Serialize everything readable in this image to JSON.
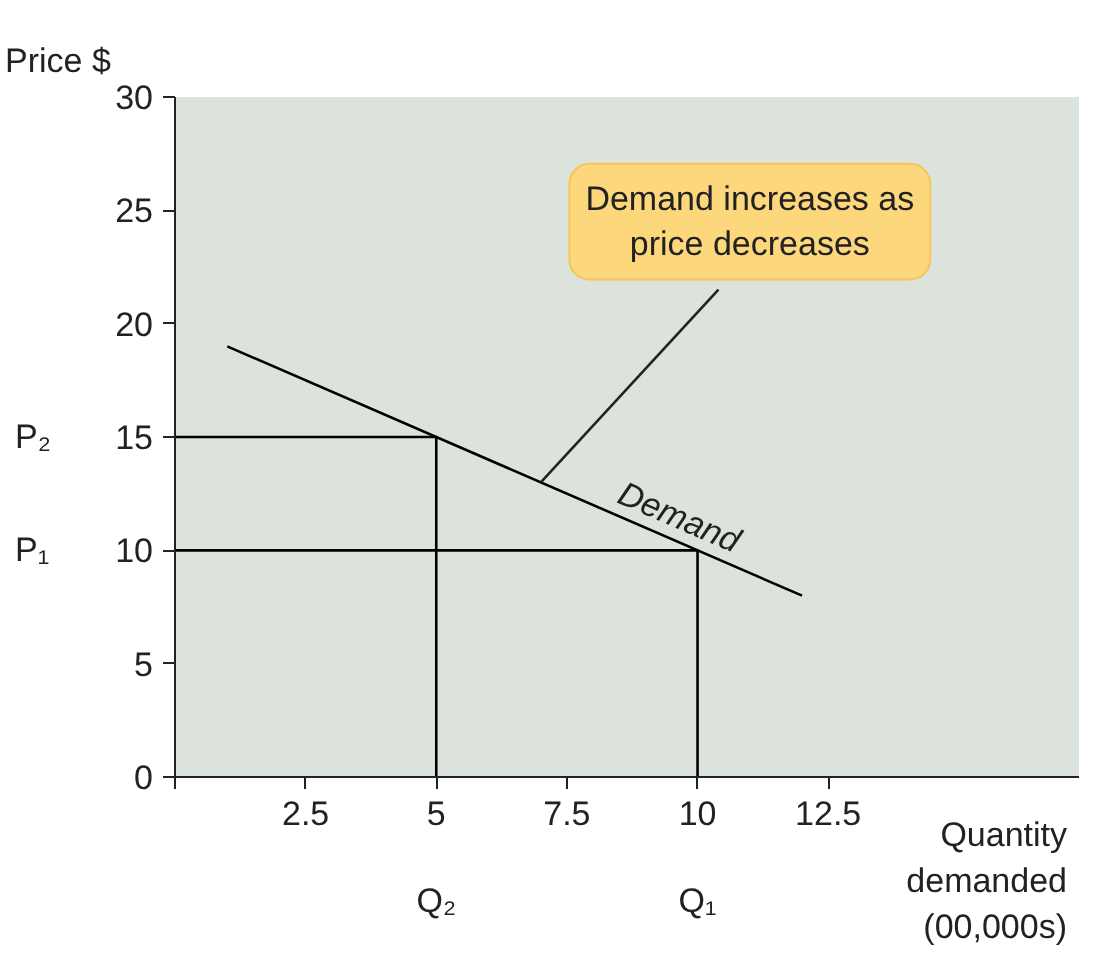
{
  "chart_data": {
    "type": "line",
    "xlabel": "Quantity demanded (00,000s)",
    "ylabel": "Price $",
    "xlim": [
      0,
      17.3
    ],
    "ylim": [
      0,
      30
    ],
    "xticks": [
      {
        "value": 0,
        "label": null
      },
      2.5,
      5,
      7.5,
      10,
      12.5
    ],
    "yticks": [
      0,
      5,
      10,
      15,
      20,
      25,
      30
    ],
    "grid": false,
    "marker": "none",
    "line_style": "solid",
    "series": [
      {
        "name": "Demand",
        "color": "#000000",
        "x": [
          1,
          12
        ],
        "values": [
          19,
          8
        ]
      },
      {
        "color": "#000000",
        "x": [
          0,
          5,
          5
        ],
        "values": [
          15,
          15,
          0
        ]
      },
      {
        "color": "#000000",
        "x": [
          0,
          10,
          10
        ],
        "values": [
          10,
          10,
          0
        ]
      }
    ],
    "annotations": [
      {
        "text": "Demand increases as price decreases",
        "x": 7,
        "y": 13
      },
      "P₂",
      "P₁",
      "Q₂",
      "Q₁"
    ]
  }
}
